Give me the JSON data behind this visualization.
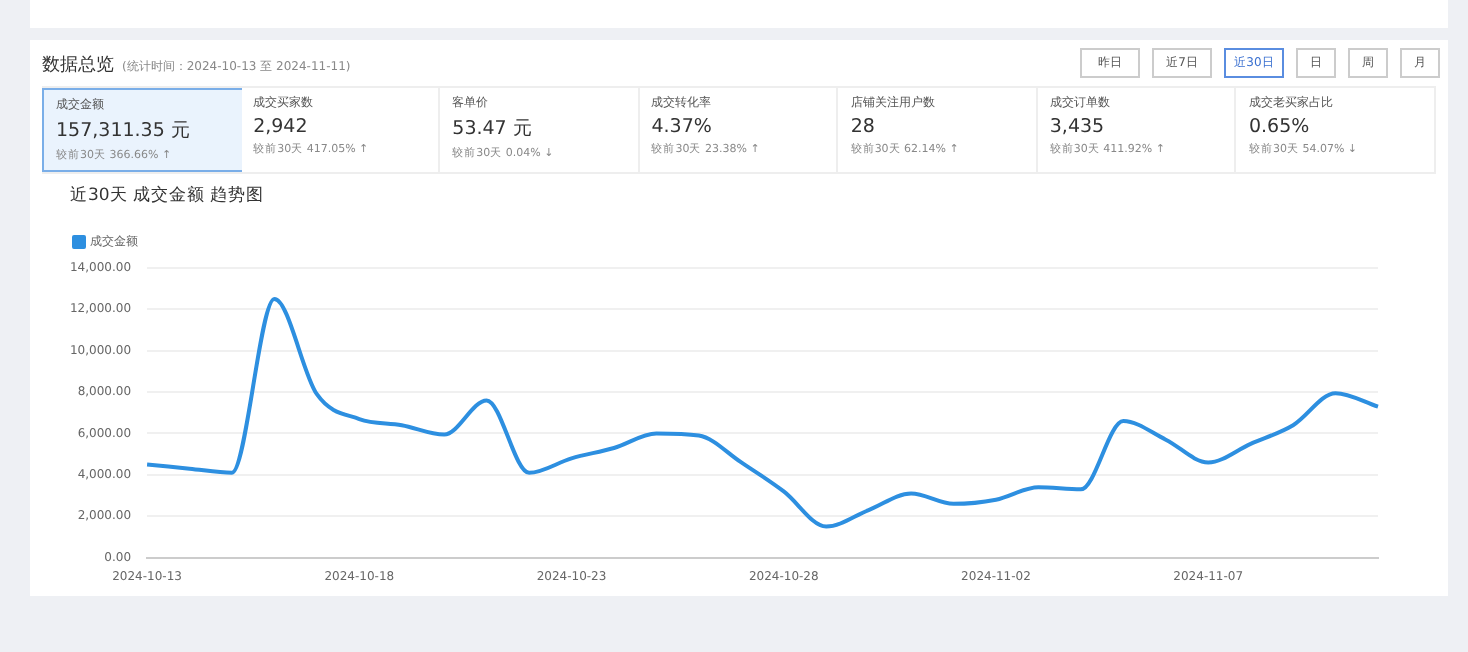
{
  "chart_data": [
    {
      "type": "other",
      "title": "数据总览",
      "subtitle": "(统计时间：2024-10-13 至 2024-11-11)",
      "annotations": [
        "昨日",
        "近7日",
        "近30日",
        "日",
        "周",
        "月",
        "成交金额",
        "157,311.35 元",
        "较前30天 366.66% ↑",
        "成交买家数",
        "2,942",
        "较前30天 417.05% ↑",
        "客单价",
        "53.47 元",
        "较前30天 0.04% ↓",
        "成交转化率",
        "4.37%",
        "较前30天 23.38% ↑",
        "店铺关注用户数",
        "28",
        "较前30天 62.14% ↑",
        "成交订单数",
        "3,435",
        "较前30天 411.92% ↑",
        "成交老买家占比",
        "0.65%",
        "较前30天 54.07% ↓"
      ]
    },
    {
      "type": "line",
      "title": "近30天 成交金额 趋势图",
      "categories": [
        "2024-10-13",
        null,
        null,
        null,
        null,
        "2024-10-18",
        null,
        null,
        null,
        null,
        "2024-10-23",
        null,
        null,
        null,
        null,
        "2024-10-28",
        null,
        null,
        null,
        null,
        "2024-11-02",
        null,
        null,
        null,
        null,
        "2024-11-07",
        null,
        null,
        null,
        null
      ],
      "series": [
        {
          "name": "成交金额",
          "color": "#2d8fe0",
          "values": [
            4500,
            4300,
            4100,
            12500,
            7900,
            6700,
            6400,
            5950,
            7600,
            4100,
            4800,
            5300,
            6000,
            5900,
            4600,
            3200,
            1500,
            2300,
            3100,
            2600,
            2800,
            3400,
            3300,
            6600,
            5700,
            4600,
            5500,
            6400,
            7950,
            7300
          ]
        }
      ],
      "ylim": [
        0,
        14000
      ],
      "yticks": [
        {
          "value": 0,
          "label": "0.00"
        },
        {
          "value": 2000,
          "label": "2,000.00"
        },
        {
          "value": 4000,
          "label": "4,000.00"
        },
        {
          "value": 6000,
          "label": "6,000.00"
        },
        {
          "value": 8000,
          "label": "8,000.00"
        },
        {
          "value": 10000,
          "label": "10,000.00"
        },
        {
          "value": 12000,
          "label": "12,000.00"
        },
        {
          "value": 14000,
          "label": "14,000.00"
        }
      ],
      "grid": "y",
      "legend": "top left",
      "marker": "none",
      "line_style": "solid"
    }
  ]
}
